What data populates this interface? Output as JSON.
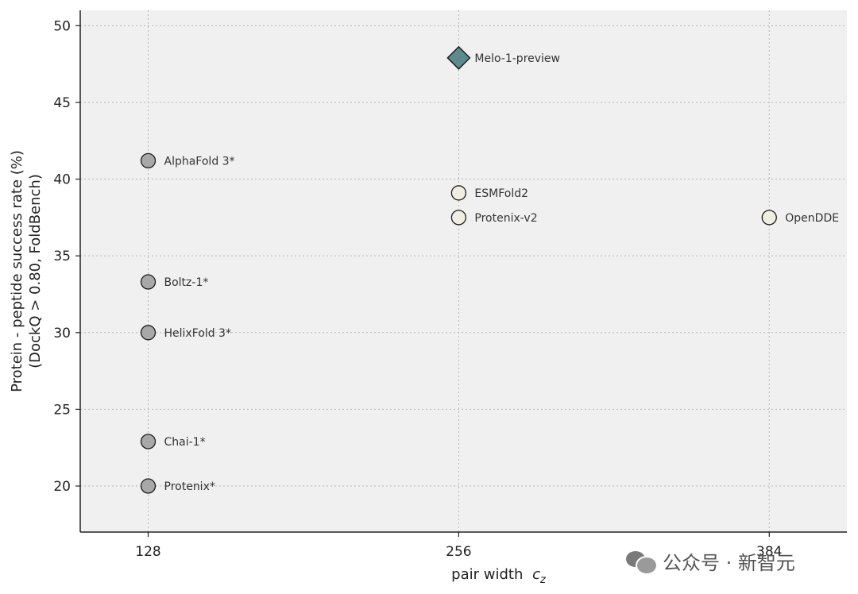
{
  "chart_data": {
    "type": "scatter",
    "xlabel": "pair width",
    "xlabel_subscript": "z",
    "xlabel_symbol": "c",
    "ylabel_line1": "Protein - peptide success rate (%)",
    "ylabel_line2": "(DockQ > 0.80, FoldBench)",
    "x_ticks": [
      128,
      256,
      384
    ],
    "y_ticks": [
      20,
      25,
      30,
      35,
      40,
      45,
      50
    ],
    "xlim": [
      100,
      416
    ],
    "ylim": [
      17,
      51
    ],
    "grid": true,
    "points": [
      {
        "label": "Melo-1-preview",
        "x": 256,
        "y": 47.9,
        "marker": "diamond",
        "color": "#5b8a8f"
      },
      {
        "label": "AlphaFold 3*",
        "x": 128,
        "y": 41.2,
        "marker": "circle",
        "color": "#a8a8a8"
      },
      {
        "label": "ESMFold2",
        "x": 256,
        "y": 39.1,
        "marker": "circle",
        "color": "#efeee0"
      },
      {
        "label": "Protenix-v2",
        "x": 256,
        "y": 37.5,
        "marker": "circle",
        "color": "#efeee0"
      },
      {
        "label": "OpenDDE",
        "x": 384,
        "y": 37.5,
        "marker": "circle",
        "color": "#efeee0"
      },
      {
        "label": "Boltz-1*",
        "x": 128,
        "y": 33.3,
        "marker": "circle",
        "color": "#a8a8a8"
      },
      {
        "label": "HelixFold 3*",
        "x": 128,
        "y": 30.0,
        "marker": "circle",
        "color": "#a8a8a8"
      },
      {
        "label": "Chai-1*",
        "x": 128,
        "y": 22.9,
        "marker": "circle",
        "color": "#a8a8a8"
      },
      {
        "label": "Protenix*",
        "x": 128,
        "y": 20.0,
        "marker": "circle",
        "color": "#a8a8a8"
      }
    ]
  },
  "watermark": {
    "text": "公众号 · 新智元"
  }
}
